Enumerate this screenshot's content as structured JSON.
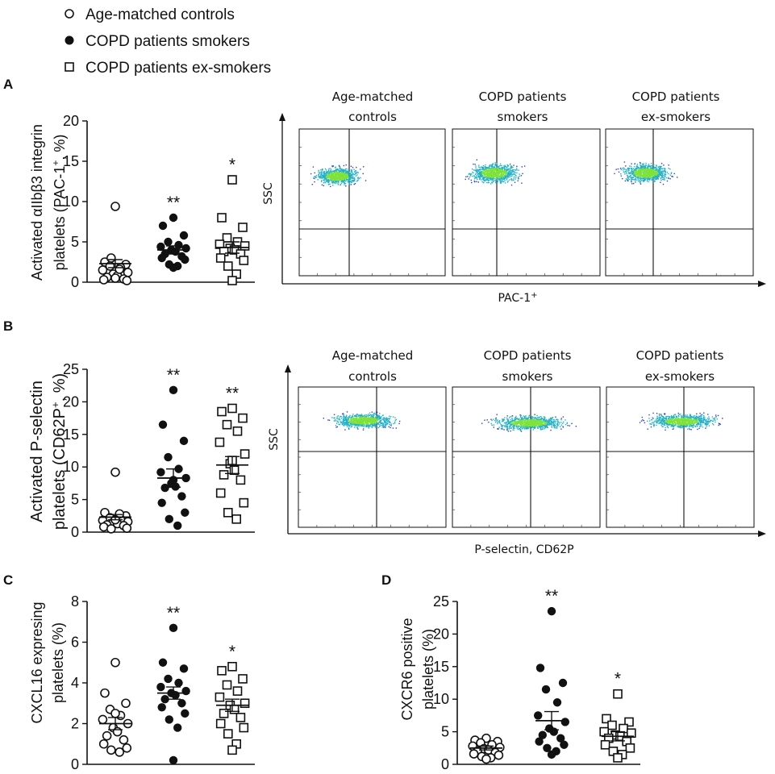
{
  "legend": [
    {
      "label": "Age-matched controls",
      "marker": "open-circle"
    },
    {
      "label": "COPD patients smokers",
      "marker": "filled-circle"
    },
    {
      "label": "COPD patients ex-smokers",
      "marker": "open-square"
    }
  ],
  "colors": {
    "axis": "#111111",
    "flow_low": "#2b3fd6",
    "flow_mid": "#22b0c8",
    "flow_high": "#7ee23a"
  },
  "chart_data": [
    {
      "panel": "A",
      "type": "scatter",
      "ylabel_line1": "Activated αIIbβ3 integrin",
      "ylabel_line2": "platelets (PAC-1",
      "ylabel_sup": "+",
      "ylabel_end": ", %)",
      "ylim": [
        0,
        20
      ],
      "yticks": [
        "0",
        "5",
        "10",
        "15",
        "20"
      ],
      "series": [
        {
          "name": "Age-matched controls",
          "marker": "open-circle",
          "mean": 2.3,
          "sem": 0.5,
          "significance": "",
          "values": [
            9.4,
            2.5,
            2.2,
            2.0,
            1.8,
            1.5,
            1.2,
            1.0,
            0.8,
            0.6,
            0.4,
            0.3,
            0.2,
            3.0,
            1.6,
            0.5
          ]
        },
        {
          "name": "COPD patients smokers",
          "marker": "filled-circle",
          "mean": 4.0,
          "sem": 0.5,
          "significance": "**",
          "values": [
            8.0,
            7.0,
            5.8,
            5.0,
            4.6,
            4.4,
            4.2,
            4.0,
            3.8,
            3.5,
            3.2,
            3.0,
            2.8,
            2.2,
            2.0,
            1.8
          ]
        },
        {
          "name": "COPD patients ex-smokers",
          "marker": "open-square",
          "mean": 4.3,
          "sem": 0.7,
          "significance": "*",
          "values": [
            12.7,
            8.0,
            6.8,
            5.5,
            5.0,
            4.7,
            4.5,
            4.2,
            4.0,
            3.8,
            3.5,
            3.0,
            2.7,
            2.0,
            1.0,
            0.2
          ]
        }
      ]
    },
    {
      "panel": "B",
      "type": "scatter",
      "ylabel_line1": "Activated P-selectin",
      "ylabel_line2": "platelets (CD62P",
      "ylabel_sup": "+",
      "ylabel_end": ", %)",
      "ylim": [
        0,
        25
      ],
      "yticks": [
        "0",
        "5",
        "10",
        "15",
        "20",
        "25"
      ],
      "series": [
        {
          "name": "Age-matched controls",
          "marker": "open-circle",
          "mean": 2.3,
          "sem": 0.4,
          "significance": "",
          "values": [
            9.2,
            3.0,
            2.5,
            2.2,
            2.0,
            1.8,
            1.6,
            1.5,
            1.3,
            1.1,
            1.0,
            0.8,
            0.6,
            0.5,
            2.8,
            1.9
          ]
        },
        {
          "name": "COPD patients smokers",
          "marker": "filled-circle",
          "mean": 8.3,
          "sem": 1.4,
          "significance": "**",
          "values": [
            21.8,
            16.5,
            14.0,
            11.5,
            9.7,
            9.2,
            8.3,
            7.5,
            7.0,
            6.8,
            5.5,
            4.5,
            3.0,
            2.0,
            1.0,
            8.0
          ]
        },
        {
          "name": "COPD patients ex-smokers",
          "marker": "open-square",
          "mean": 10.3,
          "sem": 1.3,
          "significance": "**",
          "values": [
            19.0,
            18.5,
            17.5,
            16.5,
            15.5,
            13.8,
            12.0,
            10.5,
            9.5,
            8.8,
            8.0,
            6.0,
            4.5,
            3.0,
            2.0,
            11.0
          ]
        }
      ]
    },
    {
      "panel": "C",
      "type": "scatter",
      "ylabel_line1": "CXCL16 expresing",
      "ylabel_line2": "platelets (%)",
      "ylim": [
        0,
        8
      ],
      "yticks": [
        "0",
        "2",
        "4",
        "6",
        "8"
      ],
      "series": [
        {
          "name": "Age-matched controls",
          "marker": "open-circle",
          "mean": 2.0,
          "sem": 0.3,
          "significance": "",
          "values": [
            5.0,
            3.5,
            3.0,
            2.7,
            2.4,
            2.2,
            2.0,
            1.8,
            1.6,
            1.4,
            1.2,
            1.0,
            0.8,
            0.7,
            0.6,
            2.5
          ]
        },
        {
          "name": "COPD patients smokers",
          "marker": "filled-circle",
          "mean": 3.5,
          "sem": 0.3,
          "significance": "**",
          "values": [
            6.7,
            5.0,
            4.7,
            4.2,
            4.0,
            3.8,
            3.6,
            3.5,
            3.4,
            3.2,
            3.0,
            2.8,
            2.5,
            2.2,
            1.8,
            0.2
          ]
        },
        {
          "name": "COPD patients ex-smokers",
          "marker": "open-square",
          "mean": 2.9,
          "sem": 0.3,
          "significance": "*",
          "values": [
            4.8,
            4.6,
            4.2,
            3.9,
            3.6,
            3.3,
            3.0,
            2.9,
            2.7,
            2.5,
            2.3,
            2.0,
            1.8,
            1.5,
            1.0,
            0.7
          ]
        }
      ]
    },
    {
      "panel": "D",
      "type": "scatter",
      "ylabel_line1": "CXCR6 positive",
      "ylabel_line2": "platelets (%)",
      "ylim": [
        0,
        25
      ],
      "yticks": [
        "0",
        "5",
        "10",
        "15",
        "20",
        "25"
      ],
      "series": [
        {
          "name": "Age-matched controls",
          "marker": "open-circle",
          "mean": 2.5,
          "sem": 0.3,
          "significance": "",
          "values": [
            4.0,
            3.7,
            3.5,
            3.3,
            3.0,
            2.8,
            2.6,
            2.4,
            2.2,
            2.0,
            1.8,
            1.6,
            1.4,
            1.2,
            1.0,
            0.8
          ]
        },
        {
          "name": "COPD patients smokers",
          "marker": "filled-circle",
          "mean": 6.7,
          "sem": 1.4,
          "significance": "**",
          "values": [
            23.5,
            14.8,
            12.5,
            11.5,
            9.5,
            7.5,
            6.5,
            5.5,
            5.0,
            4.5,
            4.0,
            3.5,
            3.0,
            2.5,
            2.0,
            1.5
          ]
        },
        {
          "name": "COPD patients ex-smokers",
          "marker": "open-square",
          "mean": 4.3,
          "sem": 0.7,
          "significance": "*",
          "values": [
            10.8,
            7.0,
            6.5,
            6.0,
            5.5,
            5.0,
            4.8,
            4.5,
            4.3,
            4.0,
            3.5,
            3.0,
            2.5,
            2.0,
            1.5,
            1.0
          ]
        }
      ]
    }
  ],
  "flow_A": {
    "panel_titles": [
      [
        "Age-matched",
        "controls"
      ],
      [
        "COPD patients",
        "smokers"
      ],
      [
        "COPD patients",
        "ex-smokers"
      ]
    ],
    "y_axis_label": "SSC",
    "x_axis_label": "PAC-1",
    "x_axis_sup": "+"
  },
  "flow_B": {
    "panel_titles": [
      [
        "Age-matched",
        "controls"
      ],
      [
        "COPD patients",
        "smokers"
      ],
      [
        "COPD patients",
        "ex-smokers"
      ]
    ],
    "y_axis_label": "SSC",
    "x_axis_label": "P-selectin, CD62P"
  }
}
